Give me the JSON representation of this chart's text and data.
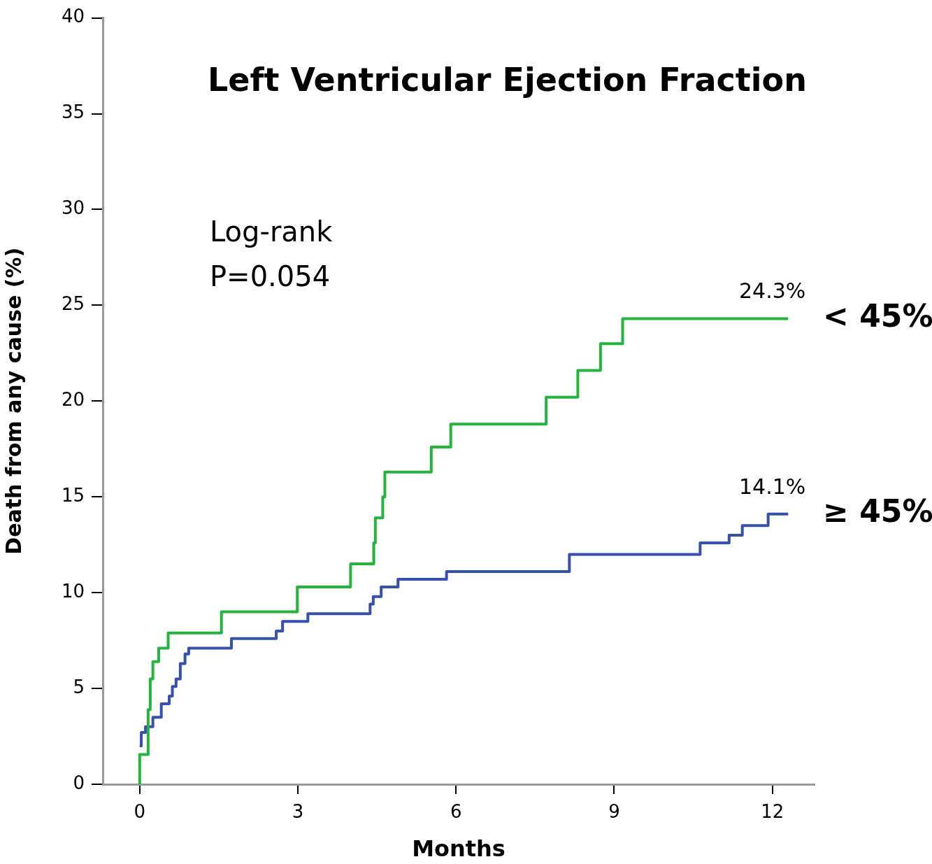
{
  "chart_data": {
    "type": "step",
    "title": "Left Ventricular Ejection Fraction",
    "xlabel": "Months",
    "ylabel": "Death from any cause (%)",
    "annotations": [
      "Log-rank",
      "P=0.054",
      {
        "text": "24.3%",
        "x": 12,
        "y": 24.3
      },
      {
        "text": "14.1%",
        "x": 12,
        "y": 14.1
      }
    ],
    "series": [
      {
        "name": "< 45%",
        "color": "#22b43c",
        "x": [
          0,
          0,
          0.16,
          0.2,
          0.25,
          0.36,
          0.54,
          1.55,
          2.99,
          4.0,
          4.44,
          4.47,
          4.61,
          4.65,
          5.53,
          5.9,
          7.71,
          8.31,
          8.74,
          9.16,
          12.3
        ],
        "values": [
          0,
          1.55,
          3.9,
          5.5,
          6.4,
          7.1,
          7.9,
          9.0,
          10.3,
          11.5,
          12.6,
          13.9,
          15.0,
          16.3,
          17.6,
          18.8,
          20.2,
          21.6,
          23.0,
          24.3,
          24.3
        ]
      },
      {
        "name": "≥ 45%",
        "color": "#3550b0",
        "x": [
          0,
          0.03,
          0.11,
          0.25,
          0.41,
          0.56,
          0.62,
          0.69,
          0.77,
          0.86,
          0.93,
          1.74,
          2.59,
          2.71,
          3.19,
          4.37,
          4.43,
          4.58,
          4.9,
          5.82,
          8.15,
          10.63,
          11.18,
          11.43,
          11.92,
          12.3
        ],
        "values": [
          2.0,
          2.7,
          3.0,
          3.5,
          4.2,
          4.6,
          5.1,
          5.5,
          6.3,
          6.8,
          7.1,
          7.6,
          8.0,
          8.5,
          8.9,
          9.4,
          9.8,
          10.3,
          10.7,
          11.1,
          12.0,
          12.6,
          13.0,
          13.5,
          14.1,
          14.1
        ]
      }
    ],
    "xlim": [
      -0.7,
      12.8
    ],
    "xticks": [
      0,
      3,
      6,
      9,
      12
    ],
    "ylim": [
      0,
      40
    ],
    "yticks": [
      0,
      5,
      10,
      15,
      20,
      25,
      30,
      35,
      40
    ],
    "legend": false,
    "grid": false,
    "line_style": "solid",
    "marker": "none"
  }
}
